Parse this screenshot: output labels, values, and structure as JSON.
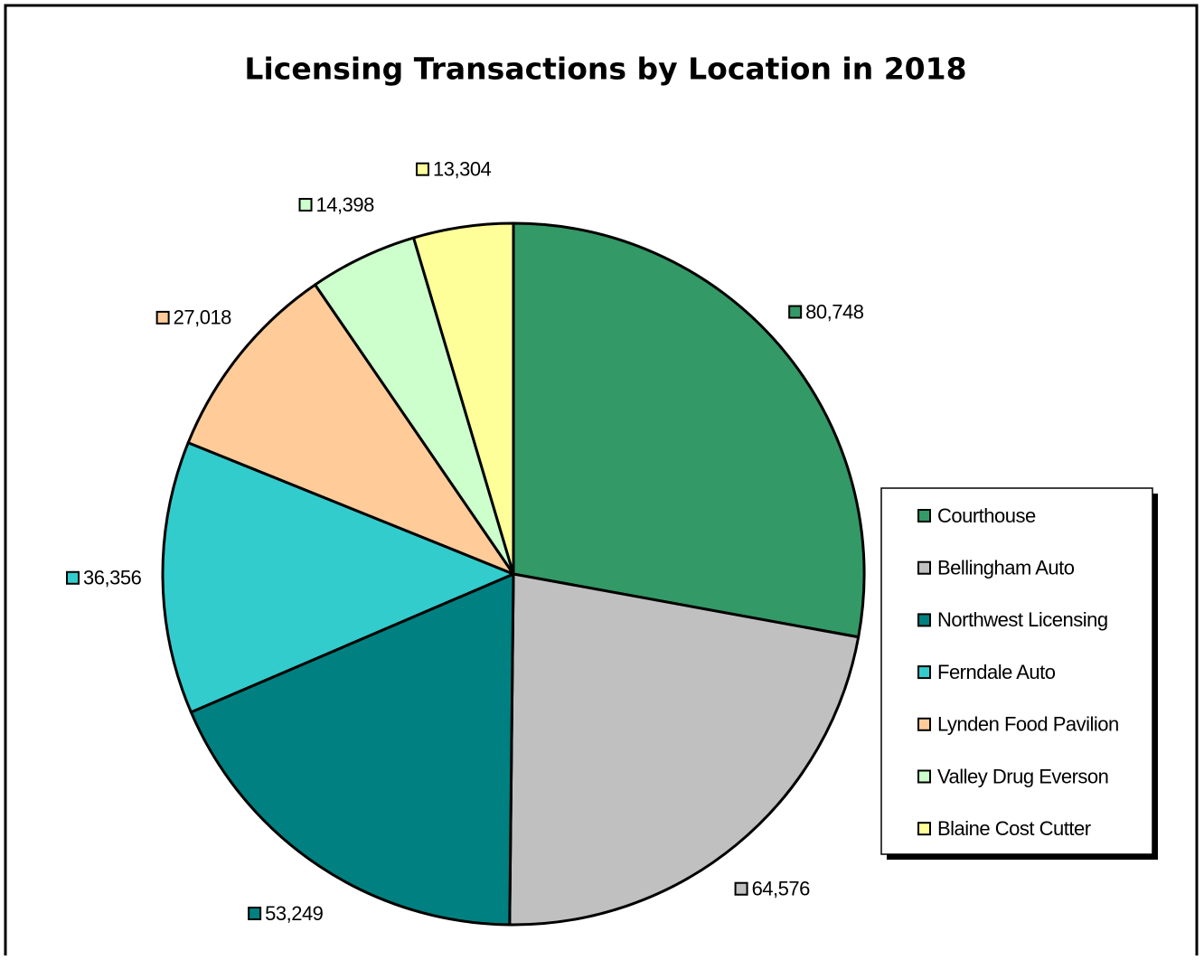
{
  "chart_data": {
    "type": "pie",
    "title": "Licensing Transactions by Location in 2018",
    "categories": [
      "Courthouse",
      "Bellingham Auto",
      "Northwest Licensing",
      "Ferndale Auto",
      "Lynden Food Pavilion",
      "Valley Drug Everson",
      "Blaine Cost Cutter"
    ],
    "values": [
      80748,
      64576,
      53249,
      36356,
      27018,
      14398,
      13304
    ],
    "value_labels": [
      "80,748",
      "64,576",
      "53,249",
      "36,356",
      "27,018",
      "14,398",
      "13,304"
    ],
    "colors": [
      "#339966",
      "#c0c0c0",
      "#008080",
      "#33cccc",
      "#ffcc99",
      "#ccffcc",
      "#ffff99"
    ],
    "legend": "right"
  }
}
